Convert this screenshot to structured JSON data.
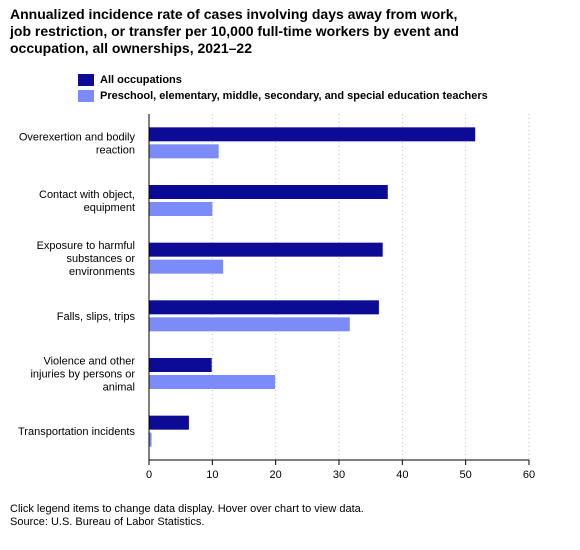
{
  "chart_data": {
    "type": "bar",
    "orientation": "horizontal",
    "title": "Annualized incidence rate of cases involving days away from work, job restriction, or transfer per 10,000 full-time workers by event and occupation, all ownerships, 2021–22",
    "categories": [
      [
        "Overexertion and bodily",
        "reaction"
      ],
      [
        "Contact with object,",
        "equipment"
      ],
      [
        "Exposure to harmful",
        "substances or",
        "environments"
      ],
      [
        "Falls, slips, trips"
      ],
      [
        "Violence and other",
        "injuries by persons or",
        "animal"
      ],
      [
        "Transportation incidents"
      ]
    ],
    "series": [
      {
        "name": "All occupations",
        "color": "#0b0b96",
        "values": [
          51.5,
          37.7,
          36.9,
          36.3,
          9.9,
          6.3
        ]
      },
      {
        "name": "Preschool, elementary, middle, secondary, and special education teachers",
        "color": "#7b8cf8",
        "values": [
          11.0,
          10.0,
          11.7,
          31.7,
          19.9,
          0.4
        ]
      }
    ],
    "xlim": [
      0,
      60
    ],
    "xticks": [
      0,
      10,
      20,
      30,
      40,
      50,
      60
    ],
    "grid": true,
    "legend": "top"
  },
  "footer": {
    "note": "Click legend items to change data display. Hover over chart to view data.",
    "source": "Source: U.S. Bureau of Labor Statistics."
  }
}
